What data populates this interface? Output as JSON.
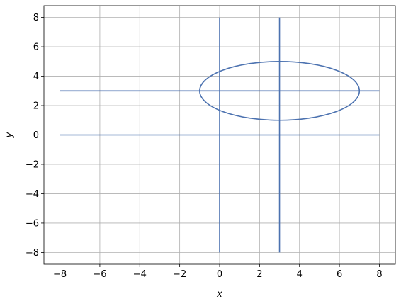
{
  "chart_data": {
    "type": "line",
    "xlabel": "x",
    "ylabel": "y",
    "xlim": [
      -8.8,
      8.8
    ],
    "ylim": [
      -8.8,
      8.8
    ],
    "xticks": [
      -8,
      -6,
      -4,
      -2,
      0,
      2,
      4,
      6,
      8
    ],
    "yticks": [
      -8,
      -6,
      -4,
      -2,
      0,
      2,
      4,
      6,
      8
    ],
    "xtick_labels": [
      "−8",
      "−6",
      "−4",
      "−2",
      "0",
      "2",
      "4",
      "6",
      "8"
    ],
    "ytick_labels": [
      "−8",
      "−6",
      "−4",
      "−2",
      "0",
      "2",
      "4",
      "6",
      "8"
    ],
    "grid": true,
    "line_color": "#4c72b0",
    "grid_color": "#b0b0b0",
    "series": [
      {
        "kind": "segment",
        "x": [
          -8,
          8
        ],
        "y": [
          0,
          0
        ]
      },
      {
        "kind": "segment",
        "x": [
          0,
          0
        ],
        "y": [
          -8,
          8
        ]
      },
      {
        "kind": "segment",
        "x": [
          -8,
          8
        ],
        "y": [
          3,
          3
        ]
      },
      {
        "kind": "segment",
        "x": [
          3,
          3
        ],
        "y": [
          -8,
          8
        ]
      },
      {
        "kind": "ellipse",
        "center": [
          3,
          3
        ],
        "rx": 4,
        "ry": 2
      }
    ]
  }
}
